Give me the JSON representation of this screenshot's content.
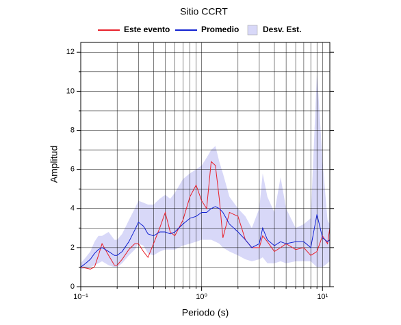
{
  "chart_data": {
    "type": "spectral",
    "title": "Sitio CCRT",
    "xlabel": "Periodo (s)",
    "ylabel": "Amplitud",
    "log_x": true,
    "grid": true,
    "xlim": [
      0.1,
      11.5
    ],
    "ylim": [
      0,
      12.5
    ],
    "xticks": [
      {
        "value": 0.1,
        "label": "10⁻¹"
      },
      {
        "value": 1,
        "label": "10⁰"
      },
      {
        "value": 10,
        "label": "10¹"
      }
    ],
    "xminor": [
      0.2,
      0.3,
      0.4,
      0.5,
      0.6,
      0.7,
      0.8,
      0.9,
      2,
      3,
      4,
      5,
      6,
      7,
      8,
      9
    ],
    "yticks": [
      0,
      2,
      4,
      6,
      8,
      10,
      12
    ],
    "yminor": [
      1,
      3,
      5,
      7,
      9,
      11
    ],
    "x": [
      0.1,
      0.11,
      0.12,
      0.13,
      0.14,
      0.15,
      0.17,
      0.19,
      0.2,
      0.22,
      0.25,
      0.28,
      0.3,
      0.33,
      0.36,
      0.4,
      0.45,
      0.5,
      0.55,
      0.6,
      0.7,
      0.8,
      0.9,
      1.0,
      1.1,
      1.2,
      1.3,
      1.4,
      1.5,
      1.7,
      2.0,
      2.3,
      2.6,
      3.0,
      3.2,
      3.5,
      4.0,
      4.5,
      5,
      6,
      7,
      8,
      9,
      10,
      11,
      11.5
    ],
    "series": [
      {
        "name": "Este evento",
        "color": "#e8202a",
        "values": [
          1.0,
          0.95,
          0.9,
          1.0,
          1.6,
          2.2,
          1.6,
          1.1,
          1.1,
          1.4,
          1.9,
          2.2,
          2.2,
          1.8,
          1.5,
          2.2,
          3.0,
          3.8,
          2.8,
          2.6,
          3.4,
          4.6,
          5.2,
          4.4,
          4.0,
          6.4,
          6.2,
          4.5,
          2.5,
          3.8,
          3.6,
          2.4,
          2.0,
          2.0,
          2.6,
          2.3,
          1.8,
          2.0,
          2.2,
          1.9,
          2.0,
          1.6,
          1.8,
          2.6,
          2.2,
          3.0
        ]
      },
      {
        "name": "Promedio",
        "color": "#1020d0",
        "values": [
          1.0,
          1.2,
          1.4,
          1.7,
          1.9,
          2.0,
          1.8,
          1.6,
          1.6,
          1.8,
          2.3,
          2.9,
          3.3,
          3.1,
          2.7,
          2.6,
          2.8,
          2.8,
          2.7,
          2.8,
          3.2,
          3.5,
          3.6,
          3.8,
          3.8,
          4.0,
          4.1,
          4.0,
          3.8,
          3.2,
          2.8,
          2.4,
          2.0,
          2.2,
          3.0,
          2.4,
          2.1,
          2.3,
          2.2,
          2.3,
          2.3,
          2.0,
          3.7,
          2.5,
          2.3,
          2.4
        ]
      },
      {
        "name": "Desv. Est.",
        "color": "#d8d8f8",
        "upper": [
          1.2,
          1.5,
          1.8,
          2.3,
          2.6,
          2.6,
          2.8,
          2.4,
          2.4,
          2.7,
          3.4,
          4.0,
          4.4,
          4.3,
          4.2,
          4.2,
          4.5,
          4.7,
          4.5,
          4.8,
          5.5,
          5.8,
          6.0,
          6.2,
          6.6,
          7.0,
          7.2,
          6.4,
          5.8,
          4.6,
          4.0,
          3.6,
          3.0,
          4.0,
          5.8,
          4.6,
          3.8,
          5.6,
          4.0,
          3.0,
          3.2,
          3.5,
          11.0,
          6.5,
          3.4,
          3.2
        ],
        "lower": [
          0.9,
          0.95,
          1.0,
          1.1,
          1.2,
          1.3,
          1.1,
          1.0,
          1.0,
          1.2,
          1.6,
          1.9,
          2.2,
          2.1,
          1.7,
          1.6,
          1.8,
          1.9,
          1.9,
          1.9,
          2.1,
          2.2,
          2.3,
          2.4,
          2.4,
          2.4,
          2.3,
          2.2,
          2.0,
          1.8,
          1.6,
          1.4,
          1.3,
          1.4,
          1.5,
          1.2,
          1.2,
          1.3,
          1.2,
          1.3,
          1.3,
          1.3,
          1.0,
          1.0,
          1.2,
          1.3
        ]
      }
    ]
  }
}
